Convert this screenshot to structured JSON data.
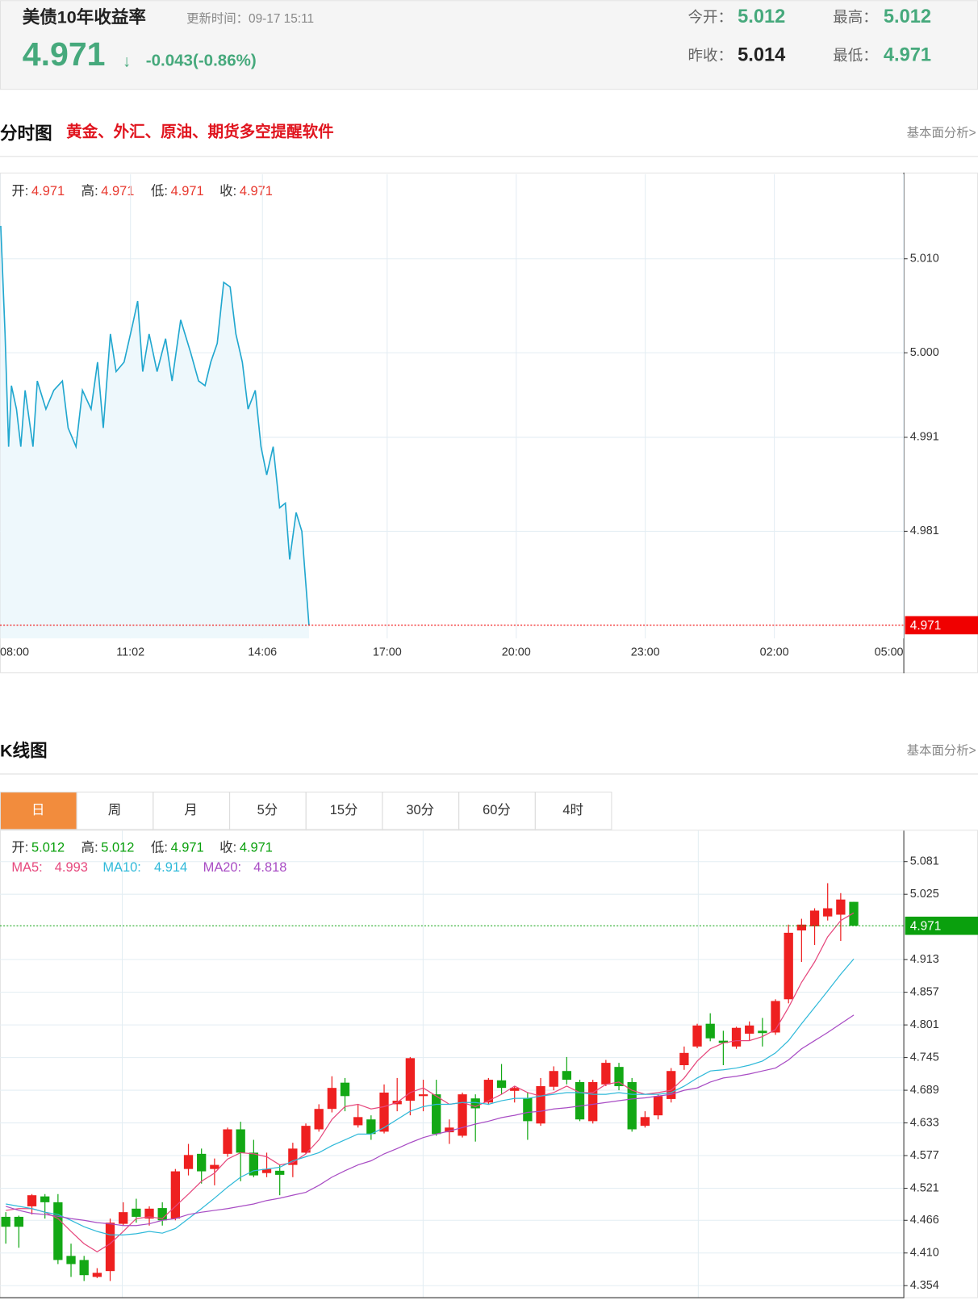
{
  "header": {
    "title": "美债10年收益率",
    "update_time": "更新时间：09-17 15:11",
    "price": 4.971,
    "arrow": "↓",
    "change": "-0.043(-0.86%)",
    "open_label": "今开：",
    "open": 5.012,
    "high_label": "最高：",
    "high": 5.012,
    "prev_close_label": "昨收：",
    "prev_close": 5.014,
    "low_label": "最低：",
    "low": 4.971
  },
  "intraday_section": {
    "title": "分时图",
    "promo": "黄金、外汇、原油、期货多空提醒软件",
    "link": "基本面分析>"
  },
  "kline_section": {
    "title": "K线图",
    "link": "基本面分析>"
  },
  "kline_tabs": {
    "items": [
      "日",
      "周",
      "月",
      "5分",
      "15分",
      "30分",
      "60分",
      "4时"
    ],
    "active": 0
  },
  "chart_data": [
    {
      "type": "line",
      "info": [
        {
          "label": "开:",
          "value": 4.971
        },
        {
          "label": "高:",
          "value": 4.971
        },
        {
          "label": "低:",
          "value": 4.971
        },
        {
          "label": "收:",
          "value": 4.971
        }
      ],
      "info_color": "#e8382e",
      "x": [
        "08:01",
        "08:07",
        "08:12",
        "08:16",
        "08:23",
        "08:29",
        "08:35",
        "08:46",
        "08:52",
        "09:04",
        "09:15",
        "09:27",
        "09:35",
        "09:46",
        "09:55",
        "10:07",
        "10:16",
        "10:24",
        "10:34",
        "10:42",
        "10:53",
        "11:05",
        "11:12",
        "11:19",
        "11:28",
        "11:39",
        "11:51",
        "12:00",
        "12:12",
        "12:26",
        "12:37",
        "12:46",
        "12:54",
        "13:03",
        "13:12",
        "13:21",
        "13:29",
        "13:38",
        "13:46",
        "13:56",
        "14:04",
        "14:12",
        "14:21",
        "14:30",
        "14:38",
        "14:44",
        "14:53",
        "15:01",
        "15:11"
      ],
      "values": [
        5.0135,
        5.002,
        4.99,
        4.9965,
        4.994,
        4.99,
        4.996,
        4.99,
        4.997,
        4.994,
        4.996,
        4.997,
        4.992,
        4.99,
        4.996,
        4.994,
        4.999,
        4.992,
        5.002,
        4.998,
        4.999,
        5.003,
        5.0055,
        4.998,
        5.002,
        4.998,
        5.0015,
        4.997,
        5.0035,
        5.0,
        4.997,
        4.9965,
        4.999,
        5.001,
        5.0075,
        5.007,
        5.002,
        4.999,
        4.994,
        4.996,
        4.99,
        4.987,
        4.99,
        4.9835,
        4.984,
        4.978,
        4.983,
        4.981,
        4.971
      ],
      "color": "#21a7cf",
      "fill_color": "#eef8fc",
      "xlim": [
        "08:00",
        "05:00"
      ],
      "xticks": [
        "08:00",
        "11:02",
        "14:06",
        "17:00",
        "20:00",
        "23:00",
        "02:00",
        "05:00"
      ],
      "ylim": [
        4.9696,
        5.019
      ],
      "yticks": [
        {
          "value": 5.01,
          "label": "5.010"
        },
        {
          "value": 5,
          "label": "5.000"
        },
        4.991,
        4.981
      ],
      "last": 4.971,
      "last_color": "#f00000",
      "grid": true
    },
    {
      "type": "candlestick",
      "info": [
        {
          "label": "开:",
          "value": 5.012
        },
        {
          "label": "高:",
          "value": 5.012
        },
        {
          "label": "低:",
          "value": 4.971
        },
        {
          "label": "收:",
          "value": 4.971
        }
      ],
      "info_color": "#0aa00d",
      "open": [
        4.472,
        4.472,
        4.49,
        4.507,
        4.497,
        4.405,
        4.398,
        4.369,
        4.379,
        4.46,
        4.486,
        4.469,
        4.487,
        4.469,
        4.554,
        4.58,
        4.554,
        4.58,
        4.622,
        4.582,
        4.547,
        4.551,
        4.561,
        4.582,
        4.622,
        4.657,
        4.702,
        4.629,
        4.639,
        4.618,
        4.665,
        4.671,
        4.679,
        4.682,
        4.617,
        4.611,
        4.675,
        4.668,
        4.706,
        4.688,
        4.676,
        4.632,
        4.695,
        4.722,
        4.703,
        4.636,
        4.699,
        4.729,
        4.703,
        4.628,
        4.646,
        4.674,
        4.732,
        4.764,
        4.803,
        4.774,
        4.764,
        4.786,
        4.791,
        4.788,
        4.845,
        4.963,
        4.97,
        4.987,
        4.99,
        5.012
      ],
      "high": [
        4.48,
        4.474,
        4.511,
        4.511,
        4.511,
        4.426,
        4.405,
        4.384,
        4.469,
        4.497,
        4.503,
        4.49,
        4.497,
        4.554,
        4.597,
        4.589,
        4.572,
        4.625,
        4.635,
        4.604,
        4.582,
        4.561,
        4.599,
        4.632,
        4.665,
        4.713,
        4.71,
        4.664,
        4.646,
        4.699,
        4.71,
        4.746,
        4.707,
        4.707,
        4.639,
        4.685,
        4.682,
        4.71,
        4.734,
        4.696,
        4.685,
        4.71,
        4.73,
        4.746,
        4.707,
        4.707,
        4.741,
        4.736,
        4.71,
        4.653,
        4.682,
        4.727,
        4.764,
        4.803,
        4.821,
        4.791,
        4.798,
        4.807,
        4.813,
        4.845,
        4.973,
        4.983,
        5.001,
        5.044,
        5.027,
        5.012
      ],
      "low": [
        4.426,
        4.419,
        4.476,
        4.469,
        4.391,
        4.369,
        4.362,
        4.367,
        4.362,
        4.457,
        4.462,
        4.457,
        4.457,
        4.466,
        4.543,
        4.529,
        4.526,
        4.575,
        4.533,
        4.54,
        4.54,
        4.509,
        4.54,
        4.58,
        4.618,
        4.651,
        4.653,
        4.625,
        4.604,
        4.615,
        4.653,
        4.646,
        4.653,
        4.611,
        4.597,
        4.608,
        4.601,
        4.664,
        4.682,
        4.668,
        4.604,
        4.628,
        4.689,
        4.699,
        4.636,
        4.632,
        4.696,
        4.689,
        4.618,
        4.625,
        4.639,
        4.668,
        4.724,
        4.761,
        4.773,
        4.732,
        4.76,
        4.774,
        4.764,
        4.784,
        4.838,
        4.909,
        4.938,
        4.98,
        4.945,
        4.971
      ],
      "close": [
        4.455,
        4.455,
        4.509,
        4.497,
        4.398,
        4.391,
        4.372,
        4.376,
        4.462,
        4.48,
        4.472,
        4.486,
        4.466,
        4.55,
        4.578,
        4.55,
        4.561,
        4.622,
        4.582,
        4.543,
        4.554,
        4.544,
        4.589,
        4.628,
        4.657,
        4.693,
        4.679,
        4.643,
        4.614,
        4.685,
        4.671,
        4.744,
        4.682,
        4.614,
        4.625,
        4.682,
        4.658,
        4.707,
        4.693,
        4.693,
        4.636,
        4.696,
        4.722,
        4.707,
        4.639,
        4.703,
        4.736,
        4.696,
        4.622,
        4.643,
        4.679,
        4.722,
        4.753,
        4.8,
        4.778,
        4.77,
        4.796,
        4.8,
        4.787,
        4.842,
        4.959,
        4.973,
        4.997,
        5.001,
        5.016,
        4.971
      ],
      "up_color": "#ee2020",
      "down_color": "#13a815",
      "ma": [
        {
          "name": "MA5:",
          "value": 4.993,
          "color": "#e6487d",
          "values": [
            4.483,
            4.486,
            4.486,
            4.48,
            4.469,
            4.447,
            4.426,
            4.412,
            4.426,
            4.447,
            4.469,
            4.472,
            4.469,
            4.49,
            4.511,
            4.533,
            4.547,
            4.571,
            4.582,
            4.58,
            4.575,
            4.561,
            4.565,
            4.58,
            4.604,
            4.639,
            4.661,
            4.665,
            4.657,
            4.661,
            4.668,
            4.685,
            4.693,
            4.679,
            4.665,
            4.668,
            4.661,
            4.671,
            4.682,
            4.696,
            4.685,
            4.679,
            4.685,
            4.696,
            4.685,
            4.685,
            4.699,
            4.703,
            4.689,
            4.682,
            4.685,
            4.689,
            4.71,
            4.739,
            4.76,
            4.77,
            4.774,
            4.774,
            4.781,
            4.793,
            4.831,
            4.874,
            4.909,
            4.952,
            4.98,
            4.993
          ]
        },
        {
          "name": "MA10:",
          "value": 4.914,
          "color": "#2fb9d9",
          "values": [
            4.494,
            4.49,
            4.486,
            4.48,
            4.476,
            4.466,
            4.455,
            4.447,
            4.441,
            4.441,
            4.443,
            4.447,
            4.444,
            4.452,
            4.469,
            4.486,
            4.504,
            4.523,
            4.54,
            4.551,
            4.554,
            4.557,
            4.568,
            4.575,
            4.582,
            4.594,
            4.604,
            4.614,
            4.614,
            4.625,
            4.639,
            4.653,
            4.661,
            4.665,
            4.665,
            4.668,
            4.668,
            4.665,
            4.671,
            4.675,
            4.675,
            4.679,
            4.682,
            4.685,
            4.685,
            4.682,
            4.682,
            4.685,
            4.682,
            4.682,
            4.682,
            4.685,
            4.696,
            4.71,
            4.722,
            4.724,
            4.727,
            4.732,
            4.739,
            4.753,
            4.774,
            4.803,
            4.831,
            4.859,
            4.888,
            4.914
          ]
        },
        {
          "name": "MA20:",
          "value": 4.818,
          "color": "#a84cc4",
          "values": [
            4.49,
            4.483,
            4.478,
            4.476,
            4.473,
            4.469,
            4.466,
            4.462,
            4.46,
            4.457,
            4.457,
            4.46,
            4.466,
            4.469,
            4.476,
            4.48,
            4.483,
            4.486,
            4.49,
            4.494,
            4.5,
            4.504,
            4.509,
            4.514,
            4.526,
            4.54,
            4.551,
            4.561,
            4.568,
            4.58,
            4.589,
            4.599,
            4.608,
            4.614,
            4.619,
            4.625,
            4.631,
            4.636,
            4.642,
            4.646,
            4.651,
            4.653,
            4.657,
            4.659,
            4.662,
            4.665,
            4.668,
            4.671,
            4.674,
            4.676,
            4.679,
            4.682,
            4.689,
            4.693,
            4.703,
            4.71,
            4.713,
            4.717,
            4.722,
            4.727,
            4.741,
            4.76,
            4.774,
            4.788,
            4.803,
            4.818
          ]
        }
      ],
      "ylim": [
        4.334,
        5.134
      ],
      "yticks": [
        5.081,
        5.025,
        4.913,
        4.857,
        4.801,
        4.745,
        4.689,
        4.633,
        4.577,
        4.521,
        4.466,
        {
          "value": 4.41,
          "label": "4.410"
        },
        4.354
      ],
      "last": 4.971,
      "last_color": "#0aa00d",
      "grid": true
    }
  ]
}
